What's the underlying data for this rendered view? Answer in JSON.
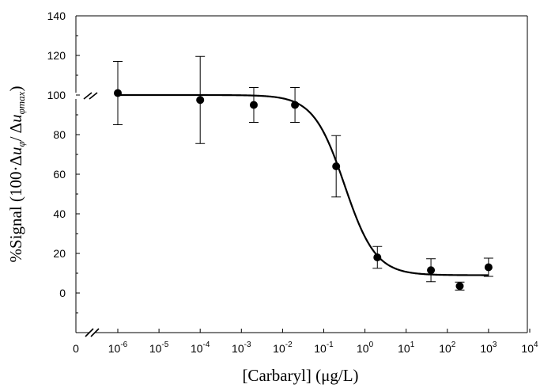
{
  "chart_data": {
    "type": "scatter",
    "title": "",
    "xlabel": "[Carbaryl] (μg/L)",
    "ylabel": {
      "prefix": "%Signal (100·Δ",
      "u1": "u",
      "sub1": "φ",
      "middle": "/ Δ",
      "u2": "u",
      "sub2": "φmax",
      "suffix": ")"
    },
    "x_scale": "log with zero break",
    "xlim_exponents": [
      -6,
      4
    ],
    "ylim": [
      -20,
      140
    ],
    "x_tick_labels": [
      {
        "base": "0",
        "exp": null
      },
      {
        "base": "10",
        "exp": "-6"
      },
      {
        "base": "10",
        "exp": "-5"
      },
      {
        "base": "10",
        "exp": "-4"
      },
      {
        "base": "10",
        "exp": "-3"
      },
      {
        "base": "10",
        "exp": "-2"
      },
      {
        "base": "10",
        "exp": "-1"
      },
      {
        "base": "10",
        "exp": "0"
      },
      {
        "base": "10",
        "exp": "1"
      },
      {
        "base": "10",
        "exp": "2"
      },
      {
        "base": "10",
        "exp": "3"
      },
      {
        "base": "10",
        "exp": "4"
      }
    ],
    "y_tick_labels": [
      "0",
      "20",
      "40",
      "60",
      "80",
      "100",
      "120",
      "140"
    ],
    "points": [
      {
        "x": 1e-06,
        "y": 101,
        "err": 16
      },
      {
        "x": 0.0001,
        "y": 97.5,
        "err": 22
      },
      {
        "x": 0.002,
        "y": 95,
        "err": 8.8
      },
      {
        "x": 0.02,
        "y": 95,
        "err": 8.8
      },
      {
        "x": 0.2,
        "y": 64,
        "err": 15.5
      },
      {
        "x": 2,
        "y": 18,
        "err": 5.5
      },
      {
        "x": 40,
        "y": 11.5,
        "err": 5.8
      },
      {
        "x": 200,
        "y": 3.5,
        "err": 2
      },
      {
        "x": 1000,
        "y": 13,
        "err": 4.6
      }
    ],
    "fit_curve": {
      "model": "four-parameter logistic",
      "top": 100,
      "bottom": 9,
      "ic50": 0.32,
      "hill": 1.15
    },
    "grid": false,
    "axis_breaks": [
      "x",
      "y"
    ],
    "colors": {
      "markers": "#000000",
      "curve": "#000000",
      "axes": "#000000"
    }
  }
}
